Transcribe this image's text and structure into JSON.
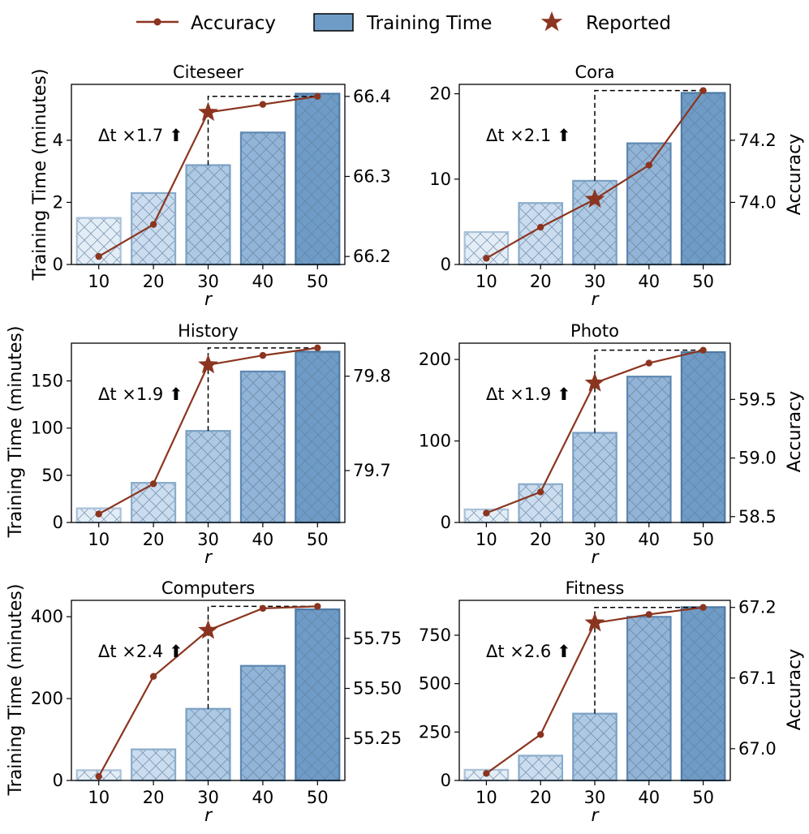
{
  "legend": {
    "accuracy": "Accuracy",
    "time": "Training Time",
    "reported": "Reported"
  },
  "shared": {
    "ylabel_left": "Training Time (minutes)",
    "ylabel_right": "Accuracy",
    "xlabel": "r"
  },
  "colors": {
    "line": "#8b3520",
    "bar_fills": [
      "#e3edf6",
      "#cadcee",
      "#aec9e3",
      "#92b4d6",
      "#6f9cc6"
    ],
    "bar_edges": [
      "#a9c1d8",
      "#8aaccb",
      "#7aa0c4",
      "#5e88b3",
      "#4e7aa5"
    ],
    "hatch": "#5f7f9e",
    "annotation": "#333333"
  },
  "chart_data": [
    {
      "type": "bar+line",
      "title": "Citeseer",
      "categories": [
        "10",
        "20",
        "30",
        "40",
        "50"
      ],
      "time": [
        1.5,
        2.3,
        3.2,
        4.25,
        5.5
      ],
      "accuracy": [
        66.2,
        66.24,
        66.38,
        66.39,
        66.4
      ],
      "reported_index": 2,
      "annotation": "Δt ×1.7 ⬆",
      "ylim_left": [
        0,
        5.8
      ],
      "ylim_right": [
        66.19,
        66.415
      ],
      "yticks_left": [
        0,
        2,
        4
      ],
      "yticks_right": [
        "66.2",
        "66.3",
        "66.4"
      ]
    },
    {
      "type": "bar+line",
      "title": "Cora",
      "categories": [
        "10",
        "20",
        "30",
        "40",
        "50"
      ],
      "time": [
        3.8,
        7.2,
        9.8,
        14.2,
        20.1
      ],
      "accuracy": [
        73.82,
        73.92,
        74.01,
        74.12,
        74.36
      ],
      "reported_index": 2,
      "annotation": "Δt ×2.1 ⬆",
      "ylim_left": [
        0,
        21.1
      ],
      "ylim_right": [
        73.8,
        74.38
      ],
      "yticks_left": [
        0,
        10,
        20
      ],
      "yticks_right": [
        "74.0",
        "74.2"
      ]
    },
    {
      "type": "bar+line",
      "title": "History",
      "categories": [
        "10",
        "20",
        "30",
        "40",
        "50"
      ],
      "time": [
        15,
        42,
        97,
        160,
        181
      ],
      "accuracy": [
        79.654,
        79.686,
        79.812,
        79.822,
        79.83
      ],
      "reported_index": 2,
      "annotation": "Δt ×1.9 ⬆",
      "ylim_left": [
        0,
        190
      ],
      "ylim_right": [
        79.645,
        79.835
      ],
      "yticks_left": [
        0,
        50,
        100,
        150
      ],
      "yticks_right": [
        "79.7",
        "79.8"
      ]
    },
    {
      "type": "bar+line",
      "title": "Photo",
      "categories": [
        "10",
        "20",
        "30",
        "40",
        "50"
      ],
      "time": [
        16,
        47,
        110,
        179,
        209
      ],
      "accuracy": [
        58.53,
        58.71,
        59.64,
        59.81,
        59.92
      ],
      "reported_index": 2,
      "annotation": "Δt ×1.9 ⬆",
      "ylim_left": [
        0,
        220
      ],
      "ylim_right": [
        58.45,
        59.98
      ],
      "yticks_left": [
        0,
        100,
        200
      ],
      "yticks_right": [
        "58.5",
        "59.0",
        "59.5"
      ]
    },
    {
      "type": "bar+line",
      "title": "Computers",
      "categories": [
        "10",
        "20",
        "30",
        "40",
        "50"
      ],
      "time": [
        25,
        76,
        175,
        280,
        418
      ],
      "accuracy": [
        55.06,
        55.56,
        55.79,
        55.9,
        55.91
      ],
      "reported_index": 2,
      "annotation": "Δt ×2.4 ⬆",
      "ylim_left": [
        0,
        440
      ],
      "ylim_right": [
        55.04,
        55.94
      ],
      "yticks_left": [
        0,
        200,
        400
      ],
      "yticks_right": [
        "55.25",
        "55.50",
        "55.75"
      ]
    },
    {
      "type": "bar+line",
      "title": "Fitness",
      "categories": [
        "10",
        "20",
        "30",
        "40",
        "50"
      ],
      "time": [
        55,
        128,
        345,
        845,
        895
      ],
      "accuracy": [
        66.965,
        67.02,
        67.178,
        67.19,
        67.2
      ],
      "reported_index": 2,
      "annotation": "Δt ×2.6 ⬆",
      "ylim_left": [
        0,
        930
      ],
      "ylim_right": [
        66.955,
        67.21
      ],
      "yticks_left": [
        0,
        250,
        500,
        750
      ],
      "yticks_right": [
        "67.0",
        "67.1",
        "67.2"
      ]
    }
  ]
}
